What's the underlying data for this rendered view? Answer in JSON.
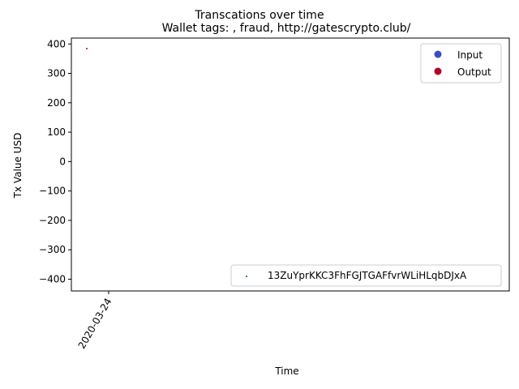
{
  "chart_data": {
    "type": "scatter",
    "suptitle": "Transcations over time",
    "title": "Wallet tags: , fraud, http://gatescrypto.club/",
    "xlabel": "Time",
    "ylabel": "Tx Value USD",
    "x_ticks": [
      "2020-03-24"
    ],
    "y_ticks": [
      400,
      300,
      200,
      100,
      0,
      -100,
      -200,
      -300,
      -400
    ],
    "ylim": [
      -440,
      420
    ],
    "legend_position": "upper right",
    "hue_legend": [
      {
        "label": "Input",
        "color": "#3b4cc0"
      },
      {
        "label": "Output",
        "color": "#b40426"
      }
    ],
    "series_legend": {
      "label": "13ZuYprKKC3FhFGJTGAFfvrWLiHLqbDJxA",
      "color": "#1f77b4",
      "position": "lower right"
    },
    "points": [
      {
        "x": "2020-03-24",
        "y": 384,
        "color": "#b40426",
        "type": "Output"
      }
    ]
  }
}
